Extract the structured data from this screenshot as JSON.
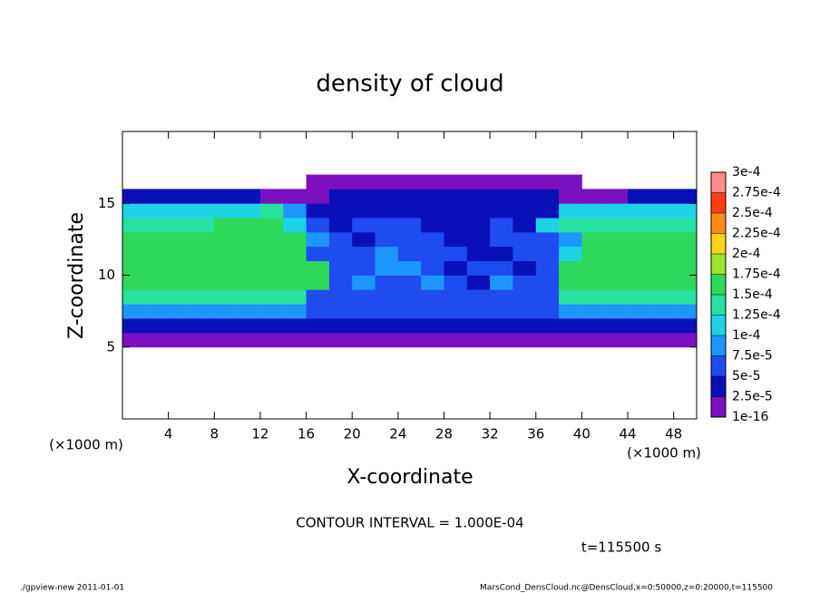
{
  "chart_data": {
    "type": "heatmap",
    "title": "density of cloud",
    "x_label": "X-coordinate",
    "y_label": "Z-coordinate",
    "x_unit_label": "(×1000 m)",
    "y_unit_label": "(×1000 m)",
    "annotation": "CONTOUR INTERVAL = 1.000E-04",
    "time_label": "t=115500 s",
    "footer_left": "./gpview-new  2011-01-01",
    "footer_right": "MarsCond_DensCloud.nc@DensCloud,x=0:50000,z=0:20000,t=115500",
    "xlim": [
      0,
      50
    ],
    "ylim": [
      0,
      20
    ],
    "xticks": [
      4,
      8,
      12,
      16,
      20,
      24,
      28,
      32,
      36,
      40,
      44,
      48
    ],
    "yticks": [
      5,
      10,
      15
    ],
    "x": [
      1,
      3,
      5,
      7,
      9,
      11,
      13,
      15,
      17,
      19,
      21,
      23,
      25,
      27,
      29,
      31,
      33,
      35,
      37,
      39,
      41,
      43,
      45,
      47,
      49
    ],
    "y": [
      5.5,
      6.5,
      7.5,
      8.5,
      9.5,
      10.5,
      11.5,
      12.5,
      13.5,
      14.5,
      15.5,
      16.5
    ],
    "z": [
      [
        1e-05,
        1e-05,
        1e-05,
        1e-05,
        1e-05,
        1e-05,
        1e-05,
        1e-05,
        1e-05,
        1e-05,
        1e-05,
        1e-05,
        1e-05,
        1e-05,
        1e-05,
        1e-05,
        1e-05,
        1e-05,
        1e-05,
        1e-05,
        1e-05,
        1e-05,
        1e-05,
        1e-05,
        1e-05
      ],
      [
        4e-05,
        4e-05,
        4e-05,
        4e-05,
        4e-05,
        4e-05,
        4e-05,
        4e-05,
        4e-05,
        3e-05,
        3e-05,
        3e-05,
        3e-05,
        3e-05,
        3e-05,
        3e-05,
        3e-05,
        3e-05,
        3e-05,
        4e-05,
        4e-05,
        4e-05,
        4e-05,
        4e-05,
        4e-05
      ],
      [
        9e-05,
        9e-05,
        9e-05,
        9e-05,
        9e-05,
        9e-05,
        9e-05,
        9e-05,
        6e-05,
        6e-05,
        6e-05,
        6e-05,
        6e-05,
        6e-05,
        6e-05,
        6e-05,
        6e-05,
        6e-05,
        6e-05,
        9e-05,
        9e-05,
        9e-05,
        9e-05,
        9e-05,
        9e-05
      ],
      [
        0.00013,
        0.00013,
        0.00013,
        0.00013,
        0.00013,
        0.00013,
        0.00013,
        0.00013,
        7e-05,
        7e-05,
        7e-05,
        7e-05,
        7e-05,
        7e-05,
        7e-05,
        7e-05,
        7e-05,
        7e-05,
        7e-05,
        0.00013,
        0.00013,
        0.00013,
        0.00013,
        0.00013,
        0.00013
      ],
      [
        0.00016,
        0.00016,
        0.00016,
        0.00016,
        0.00016,
        0.00016,
        0.00016,
        0.00016,
        0.00016,
        6e-05,
        8e-05,
        5e-05,
        7e-05,
        9e-05,
        6e-05,
        4e-05,
        8e-05,
        7e-05,
        5e-05,
        0.00016,
        0.00016,
        0.00016,
        0.00016,
        0.00016,
        0.00016
      ],
      [
        0.00016,
        0.00016,
        0.00016,
        0.00016,
        0.00016,
        0.00016,
        0.00016,
        0.00016,
        0.00016,
        5e-05,
        7e-05,
        9e-05,
        8e-05,
        6e-05,
        4e-05,
        7e-05,
        6e-05,
        3e-05,
        5e-05,
        0.00016,
        0.00016,
        0.00016,
        0.00016,
        0.00016,
        0.00016
      ],
      [
        0.00016,
        0.00016,
        0.00016,
        0.00016,
        0.00016,
        0.00016,
        0.00016,
        0.00016,
        7e-05,
        6e-05,
        5e-05,
        8e-05,
        7e-05,
        5e-05,
        6e-05,
        3e-05,
        3e-05,
        7e-05,
        6e-05,
        0.0001,
        0.00016,
        0.00016,
        0.00016,
        0.00016,
        0.00016
      ],
      [
        0.00015,
        0.00015,
        0.00015,
        0.00015,
        0.00015,
        0.00015,
        0.00015,
        0.00015,
        8e-05,
        5e-05,
        4e-05,
        6e-05,
        7e-05,
        6e-05,
        4e-05,
        3e-05,
        5e-05,
        6e-05,
        5e-05,
        8e-05,
        0.00016,
        0.00016,
        0.00016,
        0.00016,
        0.00016
      ],
      [
        0.00014,
        0.00014,
        0.00014,
        0.00014,
        0.00016,
        0.00016,
        0.00016,
        0.00012,
        6e-05,
        4e-05,
        5e-05,
        7e-05,
        6e-05,
        4e-05,
        3e-05,
        4e-05,
        5e-05,
        4e-05,
        0.0001,
        0.00014,
        0.00014,
        0.00014,
        0.00014,
        0.00014,
        0.00014
      ],
      [
        0.00012,
        0.00012,
        0.0001,
        0.0001,
        0.0001,
        0.00011,
        0.00013,
        8e-05,
        4e-05,
        4e-05,
        4e-05,
        4e-05,
        4e-05,
        4e-05,
        4e-05,
        4e-05,
        4e-05,
        4e-05,
        4e-05,
        0.00011,
        0.00011,
        0.00011,
        0.00011,
        0.00011,
        0.00011
      ],
      [
        3e-05,
        3e-05,
        3e-05,
        3e-05,
        3e-05,
        3e-05,
        2e-05,
        2e-05,
        2e-05,
        4e-05,
        4e-05,
        4e-05,
        4e-05,
        4e-05,
        4e-05,
        4e-05,
        4e-05,
        4e-05,
        4e-05,
        2e-05,
        2e-05,
        2e-05,
        3e-05,
        3e-05,
        3e-05
      ],
      [
        null,
        null,
        null,
        null,
        null,
        null,
        null,
        null,
        1e-05,
        1e-05,
        1e-05,
        1e-05,
        1e-05,
        1e-05,
        1e-05,
        1e-05,
        1e-05,
        1e-05,
        1e-05,
        1e-05,
        null,
        null,
        null,
        null,
        null
      ]
    ],
    "colorbar": {
      "levels": [
        {
          "value": 1e-16,
          "label": "1e-16"
        },
        {
          "value": 2.5e-05,
          "label": "2.5e-5"
        },
        {
          "value": 5e-05,
          "label": "5e-5"
        },
        {
          "value": 7.5e-05,
          "label": "7.5e-5"
        },
        {
          "value": 0.0001,
          "label": "1e-4"
        },
        {
          "value": 0.000125,
          "label": "1.25e-4"
        },
        {
          "value": 0.00015,
          "label": "1.5e-4"
        },
        {
          "value": 0.000175,
          "label": "1.75e-4"
        },
        {
          "value": 0.0002,
          "label": "2e-4"
        },
        {
          "value": 0.000225,
          "label": "2.25e-4"
        },
        {
          "value": 0.00025,
          "label": "2.5e-4"
        },
        {
          "value": 0.000275,
          "label": "2.75e-4"
        },
        {
          "value": 0.0003,
          "label": "3e-4"
        }
      ],
      "colors": [
        "#7a10c0",
        "#0a10b8",
        "#1e4cf0",
        "#1e96ff",
        "#1ed2e6",
        "#28e0a0",
        "#2ed85a",
        "#9ee22a",
        "#ffd21e",
        "#ff8c14",
        "#ff3c14",
        "#ff8c8c"
      ]
    }
  }
}
